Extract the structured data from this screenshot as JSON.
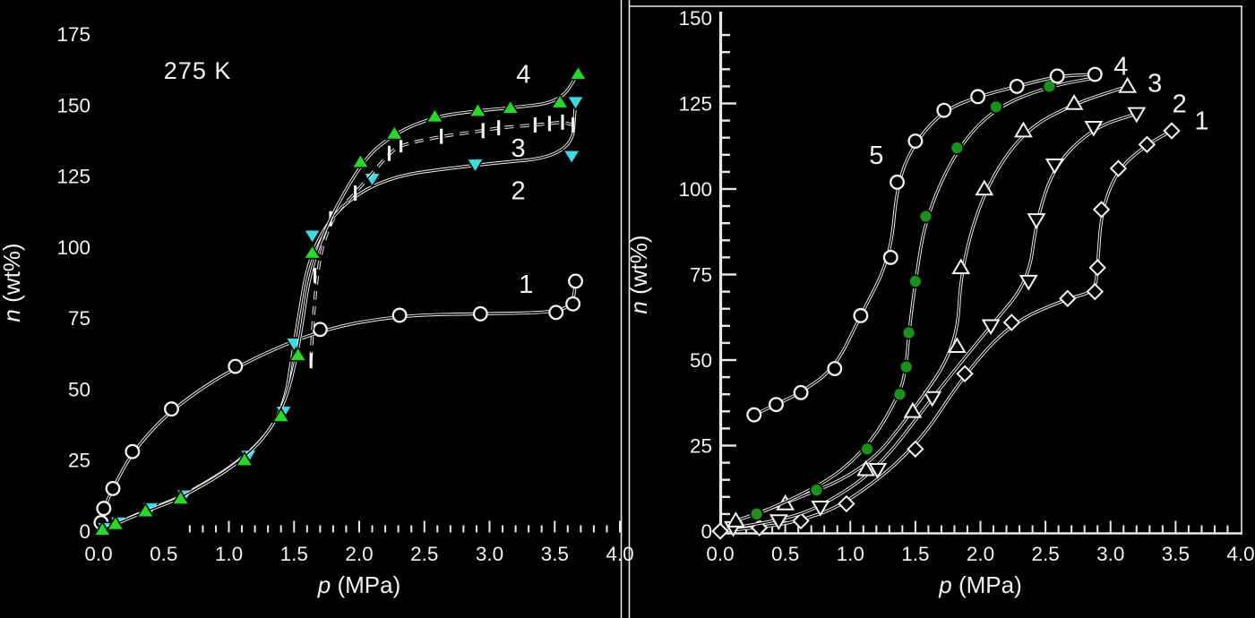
{
  "figure": {
    "background": "#000000",
    "text_color": "#f2f2f2",
    "axis_color": "#e9e9e9",
    "accent_green_left": "#2bd52b",
    "accent_cyan": "#40d8e2",
    "accent_green_right": "#1d8f1d"
  },
  "chart_data": [
    {
      "id": "left",
      "type": "line",
      "annotation": {
        "text": "275 K",
        "pos": [
          0.76,
          162
        ]
      },
      "xlabel": {
        "var": "p",
        "unit": " (MPa)"
      },
      "ylabel": {
        "var": "n",
        "unit": " (wt%)"
      },
      "xlim": [
        0.0,
        4.0
      ],
      "ylim": [
        0,
        175
      ],
      "xtick_values": [
        0,
        0.5,
        1,
        1.5,
        2,
        2.5,
        3,
        3.5,
        4
      ],
      "xtick_labels": [
        "0.0",
        "0.5",
        "1.0",
        "1.5",
        "2.0",
        "2.5",
        "3.0",
        "3.5",
        "4.0"
      ],
      "ytick_values": [
        0,
        25,
        50,
        75,
        100,
        125,
        150,
        175
      ],
      "ytick_labels": [
        "0",
        "25",
        "50",
        "75",
        "100",
        "125",
        "150",
        "175"
      ],
      "grid": false,
      "series": [
        {
          "name": "curve-1",
          "label": "1",
          "label_pos": [
            3.28,
            87
          ],
          "marker": "circle-open",
          "color": "#f2f2f2",
          "line": "solid",
          "points": [
            [
              0.02,
              3
            ],
            [
              0.04,
              8
            ],
            [
              0.11,
              15
            ],
            [
              0.26,
              28
            ],
            [
              0.56,
              43
            ],
            [
              1.05,
              58
            ],
            [
              1.7,
              71
            ],
            [
              2.31,
              76
            ],
            [
              2.93,
              76.5
            ],
            [
              3.51,
              77
            ],
            [
              3.64,
              80
            ],
            [
              3.66,
              88
            ]
          ]
        },
        {
          "name": "curve-2",
          "label": "2",
          "label_pos": [
            3.22,
            120
          ],
          "marker": "triangle-down-fill",
          "color": "#40d8e2",
          "line": "solid",
          "points": [
            [
              0.05,
              1
            ],
            [
              0.15,
              3
            ],
            [
              0.4,
              8
            ],
            [
              0.66,
              12.5
            ],
            [
              1.15,
              26.5
            ],
            [
              1.42,
              42
            ],
            [
              1.5,
              66
            ],
            [
              1.64,
              104
            ],
            [
              2.1,
              124
            ],
            [
              2.89,
              129
            ],
            [
              3.63,
              132
            ],
            [
              3.66,
              151
            ]
          ]
        },
        {
          "name": "curve-3",
          "label": "3",
          "label_pos": [
            3.22,
            135
          ],
          "marker": "vbar",
          "color": "#f2f2f2",
          "line": "dashed",
          "points": [
            [
              1.63,
              60
            ],
            [
              1.66,
              90
            ],
            [
              1.78,
              110
            ],
            [
              1.97,
              119
            ],
            [
              2.23,
              133
            ],
            [
              2.32,
              136
            ],
            [
              2.63,
              139
            ],
            [
              2.95,
              141
            ],
            [
              3.07,
              142
            ],
            [
              3.35,
              143
            ],
            [
              3.46,
              143.5
            ],
            [
              3.56,
              144
            ],
            [
              3.64,
              143
            ]
          ]
        },
        {
          "name": "curve-4",
          "label": "4",
          "label_pos": [
            3.26,
            161
          ],
          "marker": "triangle-up-fill",
          "color": "#2bd52b",
          "line": "solid",
          "points": [
            [
              0.03,
              0.5
            ],
            [
              0.13,
              2.5
            ],
            [
              0.36,
              7
            ],
            [
              0.63,
              11.5
            ],
            [
              1.12,
              25
            ],
            [
              1.4,
              40.5
            ],
            [
              1.53,
              62
            ],
            [
              1.64,
              98
            ],
            [
              2.01,
              130
            ],
            [
              2.27,
              140
            ],
            [
              2.58,
              146
            ],
            [
              2.91,
              148
            ],
            [
              3.16,
              149
            ],
            [
              3.54,
              151
            ],
            [
              3.68,
              161
            ]
          ]
        }
      ]
    },
    {
      "id": "right",
      "type": "line",
      "annotation": null,
      "xlabel": {
        "var": "p",
        "unit": " (MPa)"
      },
      "ylabel": {
        "var": "n",
        "unit": " (wt%)"
      },
      "xlim": [
        0.0,
        4.0
      ],
      "ylim": [
        0,
        150
      ],
      "xtick_values": [
        0,
        0.5,
        1,
        1.5,
        2,
        2.5,
        3,
        3.5,
        4
      ],
      "xtick_labels": [
        "0.0",
        "0.5",
        "1.0",
        "1.5",
        "2.0",
        "2.5",
        "3.0",
        "3.5",
        "4.0"
      ],
      "ytick_values": [
        0,
        25,
        50,
        75,
        100,
        125,
        150
      ],
      "ytick_labels": [
        "0",
        "25",
        "50",
        "75",
        "100",
        "125",
        "150"
      ],
      "grid": false,
      "series": [
        {
          "name": "curve-1",
          "label": "1",
          "label_pos": [
            3.7,
            120
          ],
          "marker": "diamond-open",
          "color": "#f2f2f2",
          "line": "solid",
          "points": [
            [
              0.0,
              0
            ],
            [
              0.3,
              1
            ],
            [
              0.62,
              3
            ],
            [
              0.97,
              8
            ],
            [
              1.5,
              24
            ],
            [
              1.88,
              46
            ],
            [
              2.24,
              61
            ],
            [
              2.67,
              68
            ],
            [
              2.88,
              70
            ],
            [
              2.9,
              77
            ],
            [
              2.93,
              94
            ],
            [
              3.06,
              106
            ],
            [
              3.28,
              113
            ],
            [
              3.47,
              117
            ]
          ]
        },
        {
          "name": "curve-2",
          "label": "2",
          "label_pos": [
            3.53,
            125
          ],
          "marker": "triangle-down-open",
          "color": "#f2f2f2",
          "line": "solid",
          "points": [
            [
              0.1,
              1
            ],
            [
              0.45,
              3
            ],
            [
              0.77,
              7
            ],
            [
              1.21,
              18
            ],
            [
              1.63,
              39
            ],
            [
              2.08,
              60
            ],
            [
              2.37,
              73
            ],
            [
              2.43,
              91
            ],
            [
              2.57,
              107
            ],
            [
              2.87,
              118
            ],
            [
              3.2,
              122
            ]
          ]
        },
        {
          "name": "curve-3",
          "label": "3",
          "label_pos": [
            3.34,
            131
          ],
          "marker": "triangle-up-open",
          "color": "#f2f2f2",
          "line": "solid",
          "points": [
            [
              0.12,
              3
            ],
            [
              0.5,
              8
            ],
            [
              1.12,
              18
            ],
            [
              1.48,
              35
            ],
            [
              1.82,
              54
            ],
            [
              1.85,
              77
            ],
            [
              2.03,
              100
            ],
            [
              2.33,
              117
            ],
            [
              2.72,
              125
            ],
            [
              3.13,
              130
            ]
          ]
        },
        {
          "name": "curve-4",
          "label": "4",
          "label_pos": [
            3.08,
            136
          ],
          "marker": "circle-fill",
          "color": "#1d8f1d",
          "line": "solid",
          "points": [
            [
              0.28,
              5
            ],
            [
              0.74,
              12
            ],
            [
              1.13,
              24
            ],
            [
              1.38,
              40
            ],
            [
              1.43,
              48
            ],
            [
              1.45,
              58
            ],
            [
              1.5,
              73
            ],
            [
              1.58,
              92
            ],
            [
              1.82,
              112
            ],
            [
              2.12,
              124
            ],
            [
              2.53,
              130
            ]
          ],
          "line_extend": [
            [
              2.88,
              132.5
            ]
          ]
        },
        {
          "name": "curve-5",
          "label": "5",
          "label_pos": [
            1.2,
            110
          ],
          "marker": "circle-open",
          "color": "#f2f2f2",
          "line": "solid",
          "points": [
            [
              0.26,
              34
            ],
            [
              0.43,
              37
            ],
            [
              0.62,
              40.5
            ],
            [
              0.88,
              47.5
            ],
            [
              1.08,
              63
            ],
            [
              1.31,
              80
            ],
            [
              1.36,
              102
            ],
            [
              1.5,
              114
            ],
            [
              1.72,
              123
            ],
            [
              1.98,
              127
            ],
            [
              2.28,
              130
            ],
            [
              2.59,
              133
            ],
            [
              2.88,
              133.5
            ]
          ]
        }
      ]
    }
  ]
}
